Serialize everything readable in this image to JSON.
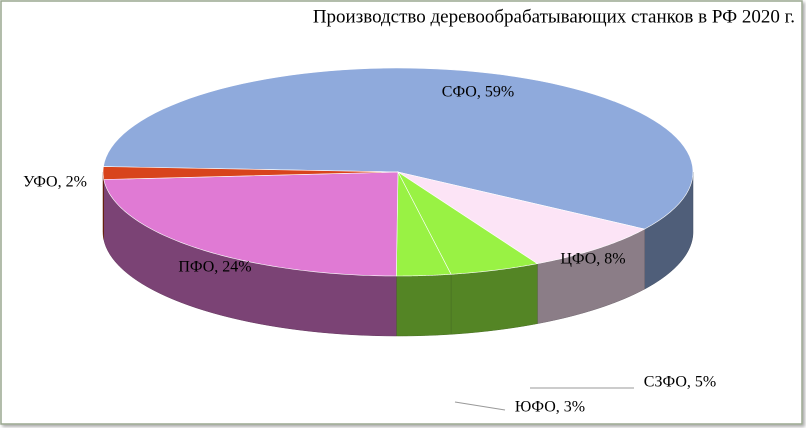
{
  "chart_data": {
    "type": "pie3d",
    "title": "Производство деревообрабатывающих станков в РФ 2020 г.",
    "values": [
      59,
      8,
      5,
      3,
      24,
      2
    ],
    "value_labels": [
      "СФО, 59%",
      "ЦФО, 8%",
      "СЗФО, 5%",
      "ЮФО, 3%",
      "ПФО, 24%",
      "УФО, 2%"
    ],
    "colors": [
      "#8faadc",
      "#fce4f6",
      "#99f244",
      "#99f244",
      "#e07ad4",
      "#d8441c"
    ]
  }
}
